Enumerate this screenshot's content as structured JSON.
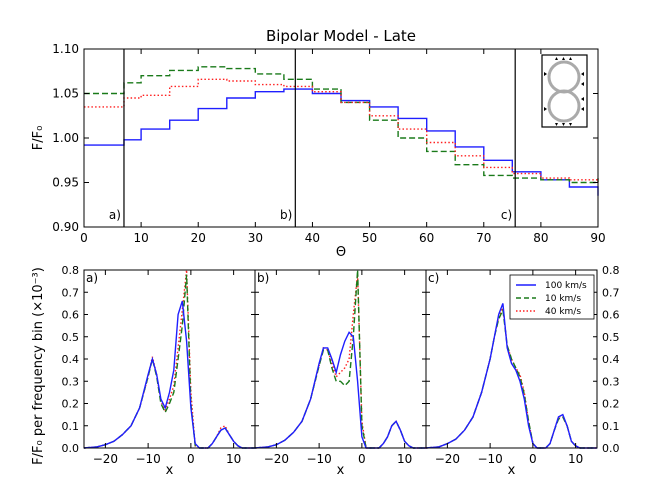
{
  "colors": {
    "blue": "#1f1fff",
    "green": "#1a7a1a",
    "red": "#ff2020"
  },
  "chart_data": [
    {
      "type": "line",
      "title": "Bipolar Model - Late",
      "xlabel": "Θ",
      "ylabel": "F/F₀",
      "xlim": [
        0,
        90
      ],
      "ylim": [
        0.9,
        1.1
      ],
      "xticks": [
        "0",
        "10",
        "20",
        "30",
        "40",
        "50",
        "60",
        "70",
        "80",
        "90"
      ],
      "yticks": [
        "0.90",
        "0.95",
        "1.00",
        "1.05",
        "1.10"
      ],
      "vlines": [
        {
          "x": 7,
          "label": "a)"
        },
        {
          "x": 37,
          "label": "b)"
        },
        {
          "x": 75.5,
          "label": "c)"
        }
      ],
      "series": [
        {
          "name": "100 km/s",
          "color_key": "blue",
          "style": "solid",
          "x": [
            0,
            6,
            7,
            10,
            15,
            20,
            25,
            30,
            35,
            40,
            45,
            50,
            55,
            60,
            65,
            70,
            75,
            80,
            85,
            90
          ],
          "y": [
            0.992,
            0.992,
            0.998,
            1.01,
            1.02,
            1.033,
            1.045,
            1.052,
            1.055,
            1.05,
            1.042,
            1.035,
            1.022,
            1.008,
            0.99,
            0.975,
            0.962,
            0.953,
            0.945,
            0.935
          ]
        },
        {
          "name": "10 km/s",
          "color_key": "green",
          "style": "dashed",
          "x": [
            0,
            6,
            7,
            10,
            15,
            20,
            25,
            30,
            35,
            40,
            45,
            50,
            55,
            60,
            65,
            70,
            75,
            80,
            85,
            90
          ],
          "y": [
            1.05,
            1.05,
            1.062,
            1.07,
            1.076,
            1.08,
            1.078,
            1.072,
            1.066,
            1.055,
            1.04,
            1.02,
            1.0,
            0.985,
            0.97,
            0.958,
            0.955,
            0.953,
            0.95,
            0.955
          ]
        },
        {
          "name": "40 km/s",
          "color_key": "red",
          "style": "dotted",
          "x": [
            0,
            6,
            7,
            10,
            15,
            20,
            25,
            30,
            35,
            40,
            45,
            50,
            55,
            60,
            65,
            70,
            75,
            80,
            85,
            90
          ],
          "y": [
            1.035,
            1.035,
            1.045,
            1.048,
            1.058,
            1.066,
            1.064,
            1.06,
            1.058,
            1.052,
            1.04,
            1.025,
            1.01,
            0.995,
            0.98,
            0.967,
            0.96,
            0.955,
            0.953,
            0.95
          ]
        }
      ]
    },
    {
      "type": "line",
      "panels": [
        "a)",
        "b)",
        "c)"
      ],
      "xlabel": "x",
      "ylabel": "F/F₀ per frequency bin (×10⁻³)",
      "xlim": [
        -25,
        15
      ],
      "ylim": [
        0.0,
        0.8
      ],
      "xticks": [
        "−20",
        "−10",
        "0",
        "10"
      ],
      "yticks": [
        "0.0",
        "0.1",
        "0.2",
        "0.3",
        "0.4",
        "0.5",
        "0.6",
        "0.7",
        "0.8"
      ],
      "legend": [
        "100 km/s",
        "10 km/s",
        "40 km/s"
      ],
      "legend_location": "upper-right of panel c",
      "x": [
        -25,
        -22,
        -20,
        -18,
        -16,
        -14,
        -12,
        -10,
        -9,
        -8,
        -7,
        -6,
        -5,
        -4,
        -3,
        -2,
        -1,
        0,
        1,
        2,
        3,
        4,
        5,
        6,
        7,
        8,
        9,
        10,
        11,
        12,
        14,
        15
      ],
      "panel_series": [
        [
          {
            "name": "100 km/s",
            "color_key": "blue",
            "style": "solid",
            "y": [
              0,
              0.005,
              0.015,
              0.03,
              0.06,
              0.1,
              0.18,
              0.33,
              0.4,
              0.33,
              0.22,
              0.18,
              0.25,
              0.35,
              0.6,
              0.66,
              0.48,
              0.18,
              0.02,
              0.0,
              0.0,
              0.0,
              0.02,
              0.05,
              0.08,
              0.09,
              0.06,
              0.03,
              0.01,
              0.0,
              0.0,
              0.0
            ]
          },
          {
            "name": "10 km/s",
            "color_key": "green",
            "style": "dashed",
            "y": [
              0,
              0.005,
              0.015,
              0.03,
              0.06,
              0.1,
              0.18,
              0.32,
              0.4,
              0.32,
              0.2,
              0.16,
              0.2,
              0.25,
              0.4,
              0.55,
              0.78,
              0.2,
              0.01,
              0.0,
              0.0,
              0.0,
              0.02,
              0.05,
              0.08,
              0.09,
              0.06,
              0.03,
              0.01,
              0.0,
              0.0,
              0.0
            ]
          },
          {
            "name": "40 km/s",
            "color_key": "red",
            "style": "dotted",
            "y": [
              0,
              0.005,
              0.015,
              0.03,
              0.06,
              0.1,
              0.18,
              0.32,
              0.41,
              0.33,
              0.21,
              0.17,
              0.22,
              0.28,
              0.45,
              0.62,
              0.8,
              0.25,
              0.01,
              0.0,
              0.0,
              0.0,
              0.02,
              0.05,
              0.09,
              0.1,
              0.06,
              0.03,
              0.01,
              0.0,
              0.0,
              0.0
            ]
          }
        ],
        [
          {
            "name": "100 km/s",
            "color_key": "blue",
            "style": "solid",
            "y": [
              0,
              0.005,
              0.015,
              0.035,
              0.07,
              0.12,
              0.22,
              0.38,
              0.45,
              0.45,
              0.4,
              0.34,
              0.42,
              0.48,
              0.52,
              0.5,
              0.3,
              0.05,
              0.0,
              0.0,
              0.0,
              0.0,
              0.02,
              0.05,
              0.1,
              0.12,
              0.08,
              0.03,
              0.01,
              0.0,
              0.0,
              0.0
            ]
          },
          {
            "name": "10 km/s",
            "color_key": "green",
            "style": "dashed",
            "y": [
              0,
              0.005,
              0.015,
              0.035,
              0.07,
              0.12,
              0.22,
              0.37,
              0.44,
              0.44,
              0.36,
              0.3,
              0.3,
              0.28,
              0.3,
              0.5,
              0.8,
              0.1,
              0.0,
              0.0,
              0.0,
              0.0,
              0.02,
              0.05,
              0.1,
              0.12,
              0.08,
              0.03,
              0.01,
              0.0,
              0.0,
              0.0
            ]
          },
          {
            "name": "40 km/s",
            "color_key": "red",
            "style": "dotted",
            "y": [
              0,
              0.005,
              0.015,
              0.035,
              0.07,
              0.12,
              0.22,
              0.37,
              0.45,
              0.44,
              0.38,
              0.32,
              0.34,
              0.36,
              0.4,
              0.6,
              0.78,
              0.12,
              0.0,
              0.0,
              0.0,
              0.0,
              0.02,
              0.05,
              0.1,
              0.12,
              0.08,
              0.03,
              0.01,
              0.0,
              0.0,
              0.0
            ]
          }
        ],
        [
          {
            "name": "100 km/s",
            "color_key": "blue",
            "style": "solid",
            "y": [
              0,
              0.005,
              0.02,
              0.04,
              0.08,
              0.14,
              0.25,
              0.4,
              0.5,
              0.6,
              0.65,
              0.45,
              0.38,
              0.35,
              0.3,
              0.22,
              0.1,
              0.02,
              0.0,
              0.0,
              0.0,
              0.02,
              0.08,
              0.14,
              0.15,
              0.1,
              0.03,
              0.01,
              0.0,
              0.0,
              0.0,
              0.0
            ]
          },
          {
            "name": "10 km/s",
            "color_key": "green",
            "style": "dashed",
            "y": [
              0,
              0.005,
              0.02,
              0.04,
              0.08,
              0.14,
              0.25,
              0.4,
              0.5,
              0.58,
              0.62,
              0.46,
              0.4,
              0.36,
              0.32,
              0.24,
              0.12,
              0.02,
              0.0,
              0.0,
              0.0,
              0.02,
              0.08,
              0.13,
              0.14,
              0.1,
              0.03,
              0.01,
              0.0,
              0.0,
              0.0,
              0.0
            ]
          },
          {
            "name": "40 km/s",
            "color_key": "red",
            "style": "dotted",
            "y": [
              0,
              0.005,
              0.02,
              0.04,
              0.08,
              0.14,
              0.25,
              0.4,
              0.5,
              0.59,
              0.63,
              0.46,
              0.4,
              0.36,
              0.33,
              0.25,
              0.12,
              0.02,
              0.0,
              0.0,
              0.0,
              0.02,
              0.08,
              0.14,
              0.14,
              0.1,
              0.03,
              0.01,
              0.0,
              0.0,
              0.0,
              0.0
            ]
          }
        ]
      ]
    }
  ]
}
